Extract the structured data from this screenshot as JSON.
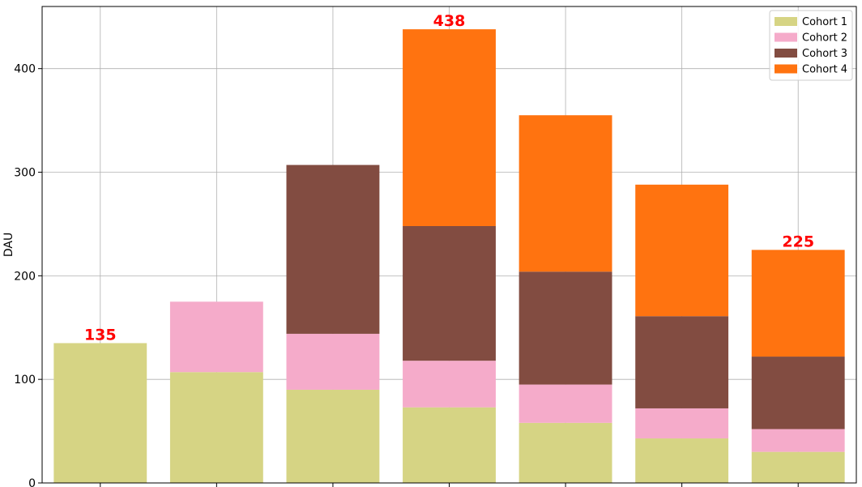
{
  "chart_data": {
    "type": "bar",
    "stacked": true,
    "title": "",
    "xlabel": "",
    "ylabel": "DAU",
    "ylim": [
      0,
      460
    ],
    "yticks": [
      0,
      100,
      200,
      300,
      400
    ],
    "grid": true,
    "legend_position": "top-right",
    "categories": [
      "",
      "",
      "",
      "",
      "",
      "",
      ""
    ],
    "series": [
      {
        "name": "Cohort 1",
        "color": "#d6d484",
        "values": [
          135,
          107,
          90,
          73,
          58,
          43,
          30
        ]
      },
      {
        "name": "Cohort 2",
        "color": "#f5abca",
        "values": [
          0,
          68,
          54,
          45,
          37,
          29,
          22
        ]
      },
      {
        "name": "Cohort 3",
        "color": "#824c41",
        "values": [
          0,
          0,
          163,
          130,
          109,
          89,
          70
        ]
      },
      {
        "name": "Cohort 4",
        "color": "#ff7310",
        "values": [
          0,
          0,
          0,
          190,
          151,
          127,
          103
        ]
      }
    ],
    "total_labels": [
      {
        "index": 0,
        "text": "135"
      },
      {
        "index": 3,
        "text": "438"
      },
      {
        "index": 6,
        "text": "225"
      }
    ],
    "total_label_color": "#ff0000"
  }
}
